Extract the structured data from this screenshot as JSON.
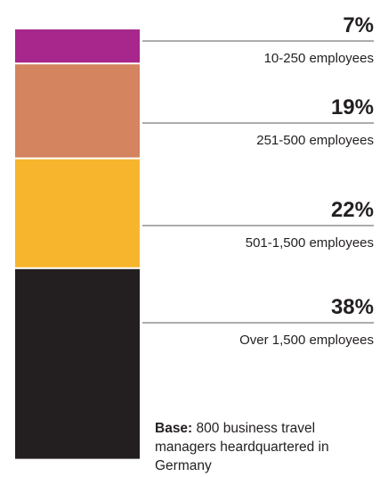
{
  "chart_data": {
    "type": "bar",
    "categories": [
      "10-250 employees",
      "251-500 employees",
      "501-1,500 employees",
      "Over 1,500 employees"
    ],
    "values": [
      7,
      19,
      22,
      38
    ],
    "data_labels": [
      "7%",
      "19%",
      "22%",
      "38%"
    ],
    "colors": [
      "#a7278c",
      "#d4845e",
      "#f6b52c",
      "#231f20"
    ],
    "title": "",
    "xlabel": "",
    "ylabel": ""
  },
  "footnote": {
    "label": "Base:",
    "text": " 800 business travel managers heardquartered in Germany"
  }
}
